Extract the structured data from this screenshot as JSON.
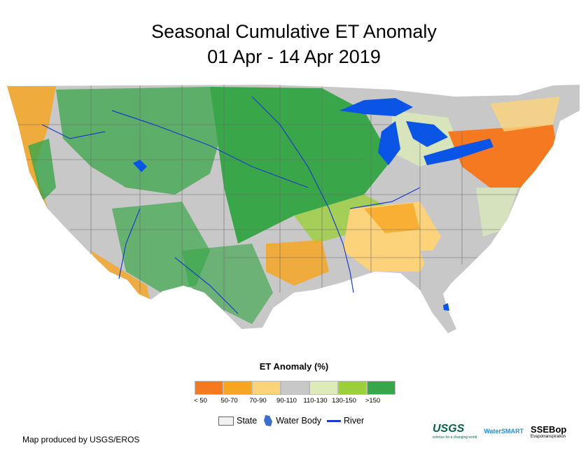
{
  "title": {
    "line1": "Seasonal Cumulative ET Anomaly",
    "line2": "01 Apr - 14 Apr 2019"
  },
  "legend": {
    "title": "ET Anomaly (%)",
    "classes": [
      {
        "label": "< 50",
        "color": "#f47920"
      },
      {
        "label": "50-70",
        "color": "#f6a623"
      },
      {
        "label": "70-90",
        "color": "#fcd37a"
      },
      {
        "label": "90-110",
        "color": "#c8c8c8"
      },
      {
        "label": "110-130",
        "color": "#dcebb8"
      },
      {
        "label": "130-150",
        "color": "#9ccf3c"
      },
      {
        "label": ">150",
        "color": "#3aa64a"
      }
    ],
    "key": {
      "state": "State",
      "water": "Water Body",
      "river": "River"
    }
  },
  "credit": "Map produced by USGS/EROS",
  "logos": {
    "usgs": "USGS",
    "usgs_tagline": "science for a changing world",
    "watersmart": "WaterSMART",
    "ssebop": "SSEBop",
    "ssebop_sub": "Evapotranspiration"
  },
  "colors": {
    "water": "#0a55e6",
    "river": "#1a3ec8",
    "state_line": "#6b6b6b"
  }
}
